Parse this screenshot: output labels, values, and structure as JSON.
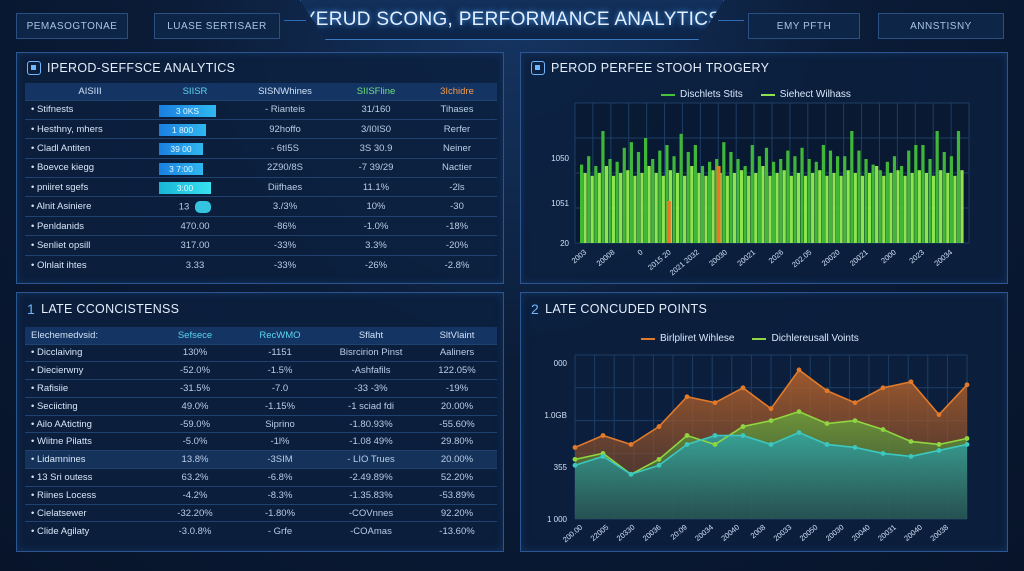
{
  "header": {
    "title": "YERUD SCONG, PERFORMANCE ANALYTICS",
    "left_buttons": [
      "PEMASOGTONAE",
      "LUASE SERTISAER"
    ],
    "right_buttons": [
      "EMY PFTH",
      "ANNSTISNY"
    ]
  },
  "panel1": {
    "title": "IPEROD-SEFFSCE ANALYTICS",
    "columns": [
      "AISIII",
      "SIISR",
      "SISNWhines",
      "SIISFline",
      "3Ichidre"
    ],
    "rows": [
      {
        "label": "Stifnests",
        "bar": "3 0KS",
        "bar_pct": 0.95,
        "c3": "- Rianteis",
        "c4": "31/160",
        "c5": "Tihases"
      },
      {
        "label": "Hesthny, mhers",
        "bar": "1 800",
        "bar_pct": 0.78,
        "c3": "92hoffo",
        "c4": "3/I0IS0",
        "c5": "Rerfer"
      },
      {
        "label": "Cladl Antiten",
        "bar": "39 00",
        "bar_pct": 0.74,
        "c3": "- 6tI5S",
        "c4": "3S 30.9",
        "c5": "Neiner"
      },
      {
        "label": "Boevce kiegg",
        "bar": "3 7:00",
        "bar_pct": 0.74,
        "c3": "2Z90/8S",
        "c4": "-7 39/29",
        "c5": "Nactier"
      },
      {
        "label": "pniiret sgefs",
        "bar": "3:00",
        "bar_pct": 0.86,
        "c3": "Diifhaes",
        "c4": "11.1%",
        "c5": "-2ls"
      },
      {
        "label": "Alnit Asiniere",
        "bar": "13",
        "pill": true,
        "c3": "3./3%",
        "c4": "10%",
        "c5": "-30"
      },
      {
        "label": "Penldanids",
        "bar": "470.00",
        "c3": "-86%",
        "c4": "-1.0%",
        "c5": "-18%"
      },
      {
        "label": "Senliet opsill",
        "bar": "317.00",
        "c3": "-33%",
        "c4": "3.3%",
        "c5": "-20%"
      },
      {
        "label": "Olnlait ihtes",
        "bar": "3.33",
        "c3": "-33%",
        "c4": "-26%",
        "c5": "-2.8%"
      }
    ]
  },
  "panel2": {
    "title": "PEROD PERFEE STOOH TROGERY",
    "legend": [
      "Dischlets Stits",
      "Siehect Wilhass"
    ],
    "colors": {
      "green": "#46c43c",
      "light_green": "#8ee34f",
      "orange": "#e77a25"
    },
    "chart_data": {
      "type": "bar",
      "ytick_labels": [
        "1050",
        "1051",
        "20"
      ],
      "xtick_labels": [
        "2003",
        "20008",
        "0",
        "2015 20",
        "2021 2032",
        "20030",
        "20021",
        "2026",
        "202.05",
        "20020",
        "20021",
        "2000",
        "2023",
        "20034"
      ],
      "series": [
        {
          "values": [
            56,
            62,
            55,
            80,
            60,
            58,
            68,
            72,
            65,
            75,
            60,
            66,
            70,
            62,
            78,
            65,
            70,
            55,
            58,
            60,
            72,
            65,
            60,
            55,
            70,
            62,
            68,
            58,
            60,
            66,
            62,
            68,
            60,
            58,
            70,
            66,
            62,
            62,
            80,
            66,
            60,
            56,
            52,
            58,
            62,
            55,
            66,
            70,
            70,
            60,
            80,
            65,
            62,
            80
          ]
        },
        {
          "values": [
            50,
            48,
            50,
            55,
            48,
            50,
            52,
            48,
            50,
            55,
            50,
            48,
            52,
            50,
            48,
            55,
            50,
            48,
            52,
            50,
            48,
            50,
            52,
            48,
            50,
            55,
            48,
            50,
            52,
            48,
            50,
            48,
            50,
            52,
            48,
            50,
            48,
            52,
            50,
            48,
            50,
            55,
            48,
            50,
            52,
            48,
            50,
            52,
            50,
            48,
            52,
            50,
            48,
            52
          ]
        },
        {
          "values": [
            null,
            null,
            null,
            null,
            null,
            null,
            null,
            null,
            null,
            null,
            null,
            null,
            30,
            null,
            null,
            null,
            null,
            null,
            null,
            55,
            null,
            null,
            null,
            null,
            null,
            null,
            null,
            null,
            null,
            null,
            null,
            null,
            null,
            null,
            null,
            null,
            null,
            null,
            null,
            null,
            null,
            null,
            null,
            null,
            null,
            null,
            null,
            null,
            null,
            null,
            null,
            null,
            null,
            null
          ]
        }
      ],
      "ylim": [
        0,
        100
      ]
    }
  },
  "panel3": {
    "title": "LATE CCONCISTENSS",
    "title_icon": "1",
    "columns": [
      "Elechemedvsid:",
      "Sefsece",
      "RecWMO",
      "Sflaht",
      "SltVlaint"
    ],
    "rows": [
      {
        "label": "Dicclaiving",
        "c2": "130%",
        "c3": "-1151",
        "c4": "Bisrcirion Pinst",
        "c5": "Aaliners",
        "hl": false
      },
      {
        "label": "Diecierwny",
        "c2": "-52.0%",
        "c3": "-1.5%",
        "c4": "-Ashfafils",
        "c5": "122.05%",
        "hl": false
      },
      {
        "label": "Rafisiie",
        "c2": "-31.5%",
        "c3": "-7.0",
        "c4": "-33 -3%",
        "c5": "-19%",
        "hl": false
      },
      {
        "label": "Seciicting",
        "c2": "49.0%",
        "c3": "-1.15%",
        "c4": "-1 sciad fdi",
        "c5": "20.00%",
        "hl": false
      },
      {
        "label": "Ailo AAticting",
        "c2": "-59.0%",
        "c3": "Siprino",
        "c4": "-1.80.93%",
        "c5": "-55.60%",
        "hl": false
      },
      {
        "label": "Wiitne Pilatts",
        "c2": "-5.0%",
        "c3": "-1l%",
        "c4": "-1.08 49%",
        "c5": "29.80%",
        "hl": false
      },
      {
        "label": "Lidamnines",
        "c2": "13.8%",
        "c3": "-3SIM",
        "c4": "- LIO Trues",
        "c5": "20.00%",
        "hl": true
      },
      {
        "label": "13 Sri outess",
        "c2": "63.2%",
        "c3": "-6.8%",
        "c4": "-2.49.89%",
        "c5": "52.20%",
        "hl": false
      },
      {
        "label": "Riines Locess",
        "c2": "-4.2%",
        "c3": "-8.3%",
        "c4": "-1.35.83%",
        "c5": "-53.89%",
        "hl": false
      },
      {
        "label": "Cielatsewer",
        "c2": "-32.20%",
        "c3": "-1.80%",
        "c4": "-COVnnes",
        "c5": "92.20%",
        "hl": false
      },
      {
        "label": "Clide Agilaty",
        "c2": "-3.0.8%",
        "c3": "- Grfe",
        "c4": "-COAmas",
        "c5": "-13.60%",
        "hl": false
      }
    ]
  },
  "panel4": {
    "title": "LATE CONCUDED POINTS",
    "title_icon": "2",
    "legend": [
      "Birlpliret Wihlese",
      "Dichlereusall Voints"
    ],
    "colors": {
      "orange": "#e27a2a",
      "green": "#8fd640",
      "teal": "#3cc8c0"
    },
    "chart_data": {
      "type": "area",
      "ytick_labels": [
        "000",
        "1.0GB",
        "355",
        "1 000"
      ],
      "xtick_labels": [
        "200.00",
        "22005",
        "20330",
        "20036",
        "20:09",
        "20034",
        "20040",
        "2008",
        "20033",
        "20050",
        "20030",
        "20040",
        "20031",
        "20040",
        "20038"
      ],
      "series": [
        {
          "name": "Birlpliret Wihlese",
          "values": [
            48,
            56,
            50,
            62,
            82,
            78,
            88,
            74,
            100,
            86,
            78,
            88,
            92,
            70,
            90
          ]
        },
        {
          "name": "Dichlereusall Voints",
          "values": [
            40,
            44,
            30,
            40,
            56,
            50,
            62,
            66,
            72,
            64,
            66,
            60,
            52,
            50,
            54
          ]
        },
        {
          "name": "teal",
          "values": [
            36,
            42,
            30,
            36,
            50,
            56,
            56,
            50,
            58,
            50,
            48,
            44,
            42,
            46,
            50
          ]
        }
      ],
      "ylim": [
        0,
        110
      ]
    }
  }
}
